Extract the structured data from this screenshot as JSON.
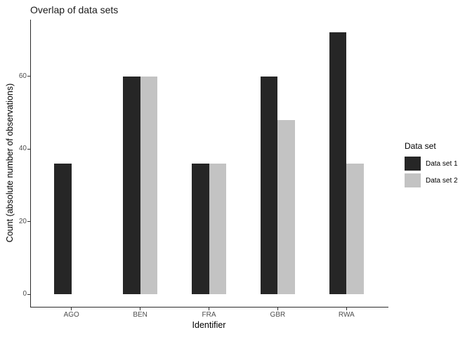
{
  "chart_data": {
    "type": "bar",
    "title": "Overlap of data sets",
    "xlabel": "Identifier",
    "ylabel": "Count (absolute number of observations)",
    "categories": [
      "AGO",
      "BEN",
      "FRA",
      "GBR",
      "RWA"
    ],
    "series": [
      {
        "name": "Data set 1",
        "color": "#262626",
        "values": [
          36,
          60,
          36,
          60,
          72
        ]
      },
      {
        "name": "Data set 2",
        "color": "#c3c3c3",
        "values": [
          null,
          60,
          36,
          48,
          36
        ]
      }
    ],
    "yticks": [
      0,
      20,
      40,
      60
    ],
    "ylim": [
      0,
      76
    ],
    "grid": false,
    "legend": {
      "title": "Data set",
      "position": "right"
    }
  },
  "colors": {
    "axis_line": "#2b2b2b",
    "tick_label": "#4d4d4d",
    "title_text": "#1a1a1a",
    "background": "#ffffff"
  }
}
